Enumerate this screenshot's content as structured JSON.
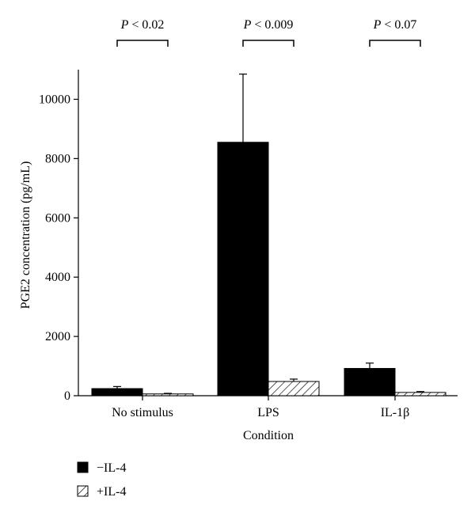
{
  "chart_data": {
    "type": "bar",
    "xlabel": "Condition",
    "ylabel": "PGE2 concentration (pg/mL)",
    "categories": [
      "No stimulus",
      "LPS",
      "IL-1β"
    ],
    "ylim": [
      0,
      11000
    ],
    "yticks": [
      0,
      2000,
      4000,
      6000,
      8000,
      10000
    ],
    "series": [
      {
        "name": "−IL-4",
        "values": [
          240,
          8550,
          920
        ],
        "errors": [
          70,
          2300,
          180
        ],
        "fill": "#000000",
        "pattern": "solid"
      },
      {
        "name": "+IL-4",
        "values": [
          60,
          480,
          110
        ],
        "errors": [
          20,
          80,
          30
        ],
        "fill": "#ffffff",
        "pattern": "hatched"
      }
    ],
    "comparisons": [
      {
        "category": "No stimulus",
        "p_prefix": "P",
        "p_value": "< 0.02"
      },
      {
        "category": "LPS",
        "p_prefix": "P",
        "p_value": "< 0.009"
      },
      {
        "category": "IL-1β",
        "p_prefix": "P",
        "p_value": "< 0.07"
      }
    ],
    "legend_position": "bottom-left",
    "grid": false
  }
}
